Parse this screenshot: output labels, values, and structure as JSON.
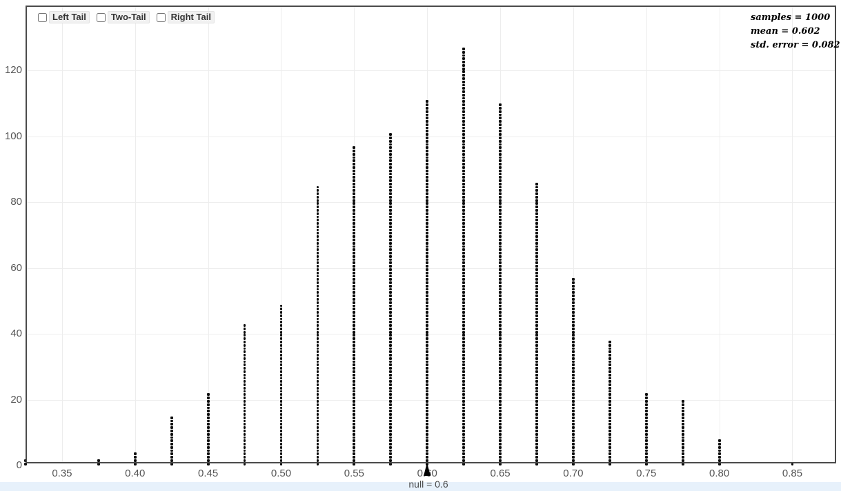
{
  "controls": {
    "items": [
      {
        "label": "Left Tail",
        "checked": false
      },
      {
        "label": "Two-Tail",
        "checked": false
      },
      {
        "label": "Right Tail",
        "checked": false
      }
    ]
  },
  "stats": {
    "samples_line": "samples = 1000",
    "mean_line": "mean = 0.602",
    "std_error_line": "std. error = 0.082"
  },
  "annotations": {
    "null_label": "null = 0.6",
    "null_value": 0.6
  },
  "chart_data": {
    "type": "dotplot",
    "title": "",
    "xlabel": "",
    "ylabel": "",
    "x": [
      0.325,
      0.375,
      0.4,
      0.425,
      0.45,
      0.475,
      0.5,
      0.525,
      0.55,
      0.575,
      0.6,
      0.625,
      0.65,
      0.675,
      0.7,
      0.725,
      0.75,
      0.775,
      0.8,
      0.85
    ],
    "counts": [
      2,
      2,
      4,
      15,
      22,
      43,
      49,
      85,
      97,
      101,
      111,
      127,
      110,
      86,
      57,
      38,
      22,
      20,
      8,
      1
    ],
    "total_samples": 1000,
    "x_ticks": [
      0.35,
      0.4,
      0.45,
      0.5,
      0.55,
      0.6,
      0.65,
      0.7,
      0.75,
      0.8,
      0.85
    ],
    "x_tick_labels": [
      "0.35",
      "0.40",
      "0.45",
      "0.50",
      "0.55",
      "0.60",
      "0.65",
      "0.70",
      "0.75",
      "0.80",
      "0.85"
    ],
    "y_ticks": [
      0,
      20,
      40,
      60,
      80,
      100,
      120
    ],
    "y_tick_labels": [
      "0",
      "20",
      "40",
      "60",
      "80",
      "100",
      "120"
    ],
    "xlim": [
      0.325,
      0.88
    ],
    "ylim": [
      0,
      139
    ],
    "grid": true,
    "legend_position": "none"
  },
  "colors": {
    "axis_frame": "#4a4a4a",
    "gridline": "#ededed",
    "dot": "#0d0d0d",
    "tick_text": "#555555",
    "checkbox_label_bg": "#f1f1f1",
    "footer_strip_bg": "#e7f1fb",
    "null_marker": "#000000"
  }
}
